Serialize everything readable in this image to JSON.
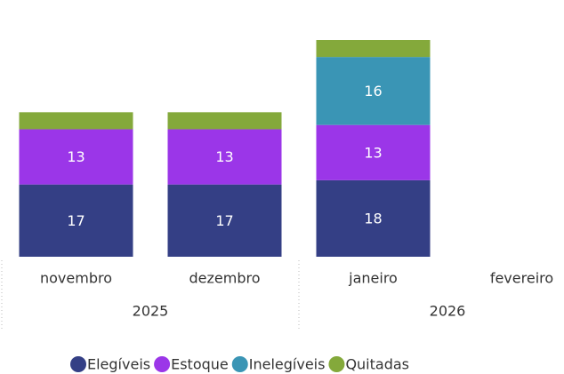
{
  "chart_data": {
    "type": "stacked_bar",
    "categories": [
      "novembro",
      "dezembro",
      "janeiro",
      "fevereiro"
    ],
    "x_groups": [
      {
        "label": "2025",
        "count": 2
      },
      {
        "label": "2026",
        "count": 2
      }
    ],
    "series": [
      {
        "name": "Elegíveis",
        "color": "#343f85",
        "values": [
          17,
          17,
          18,
          null
        ],
        "labels": true
      },
      {
        "name": "Estoque",
        "color": "#9b36e8",
        "values": [
          13,
          13,
          13,
          null
        ],
        "labels": true
      },
      {
        "name": "Inelegíveis",
        "color": "#3a95b5",
        "values": [
          null,
          null,
          16,
          null
        ],
        "labels": true
      },
      {
        "name": "Quitadas",
        "color": "#84a93b",
        "values": [
          4,
          4,
          4,
          null
        ],
        "labels": false
      }
    ],
    "legend": "bottom"
  }
}
